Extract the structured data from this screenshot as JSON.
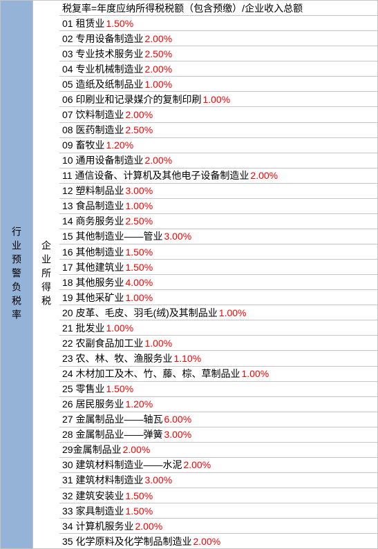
{
  "col1_label": "行业预警负税率",
  "col2_label": "企业所得税",
  "header_row": "税复率=年度应纳所得税税额（包含预缴）/企业收入总额",
  "rows": [
    {
      "num": "01",
      "name": "租赁业",
      "pct": "1.50%"
    },
    {
      "num": "02",
      "name": "专用设备制造业",
      "pct": "2.00%"
    },
    {
      "num": "03",
      "name": "专业技术服务业",
      "pct": "2.50%"
    },
    {
      "num": "04",
      "name": "专业机械制造业",
      "pct": "2.00%"
    },
    {
      "num": "05",
      "name": "造纸及纸制品业",
      "pct": "1.00%"
    },
    {
      "num": "06",
      "name": "印刷业和记录媒介的复制印刷",
      "pct": "1.00%"
    },
    {
      "num": "07",
      "name": "饮料制造业",
      "pct": "2.00%"
    },
    {
      "num": "08",
      "name": "医药制造业",
      "pct": "2.50%"
    },
    {
      "num": "09",
      "name": "畜牧业",
      "pct": "1.20%"
    },
    {
      "num": "10",
      "name": "通用设备制造业",
      "pct": "2.00%"
    },
    {
      "num": "11",
      "name": "通信设备、计算机及其他电子设备制造业",
      "pct": "2.00%"
    },
    {
      "num": "12",
      "name": "塑料制品业",
      "pct": "3.00%"
    },
    {
      "num": "13",
      "name": "食品制造业",
      "pct": "1.00%"
    },
    {
      "num": "14",
      "name": "商务服务业",
      "pct": "2.50%"
    },
    {
      "num": "15",
      "name": "其他制造业——管业",
      "pct": "3.00%"
    },
    {
      "num": "16",
      "name": "其他制造业",
      "pct": "1.50%"
    },
    {
      "num": "17",
      "name": "其他建筑业",
      "pct": "1.50%"
    },
    {
      "num": "18",
      "name": "其他服务业",
      "pct": "4.00%"
    },
    {
      "num": "19",
      "name": "其他采矿业",
      "pct": "1.00%"
    },
    {
      "num": "20",
      "name": "皮革、毛皮、羽毛(绒)及其制品业",
      "pct": "1.00%"
    },
    {
      "num": "21",
      "name": "批发业",
      "pct": "1.00%"
    },
    {
      "num": "22",
      "name": "农副食品加工业",
      "pct": "1.00%"
    },
    {
      "num": "23",
      "name": "农、林、牧、渔服务业",
      "pct": "1.10%"
    },
    {
      "num": "24",
      "name": "木材加工及木、竹、藤、棕、草制品业",
      "pct": "1.00%"
    },
    {
      "num": "25",
      "name": "零售业",
      "pct": "1.50%"
    },
    {
      "num": "26",
      "name": "居民服务业",
      "pct": "1.20%"
    },
    {
      "num": "27",
      "name": "金属制品业——轴瓦",
      "pct": "6.00%"
    },
    {
      "num": "28",
      "name": "金属制品业——弹簧",
      "pct": "3.00%"
    },
    {
      "num": "29",
      "name": "金属制品业",
      "pct": "2.00%",
      "nospace": true
    },
    {
      "num": "30",
      "name": "建筑材料制造业——水泥",
      "pct": "2.00%"
    },
    {
      "num": "31",
      "name": "建筑材料制造业",
      "pct": "3.00%"
    },
    {
      "num": "32",
      "name": "建筑安装业",
      "pct": "1.50%"
    },
    {
      "num": "33",
      "name": "家具制造业",
      "pct": "1.50%"
    },
    {
      "num": "34",
      "name": "计算机服务业",
      "pct": "2.00%"
    },
    {
      "num": "35",
      "name": "化学原料及化学制品制造业",
      "pct": "2.00%"
    }
  ],
  "colors": {
    "col1_bg": "#95b3d7",
    "border": "#c5c5c5",
    "text": "#000000",
    "pct": "#ff0000",
    "row_bg": "#ffffff"
  }
}
